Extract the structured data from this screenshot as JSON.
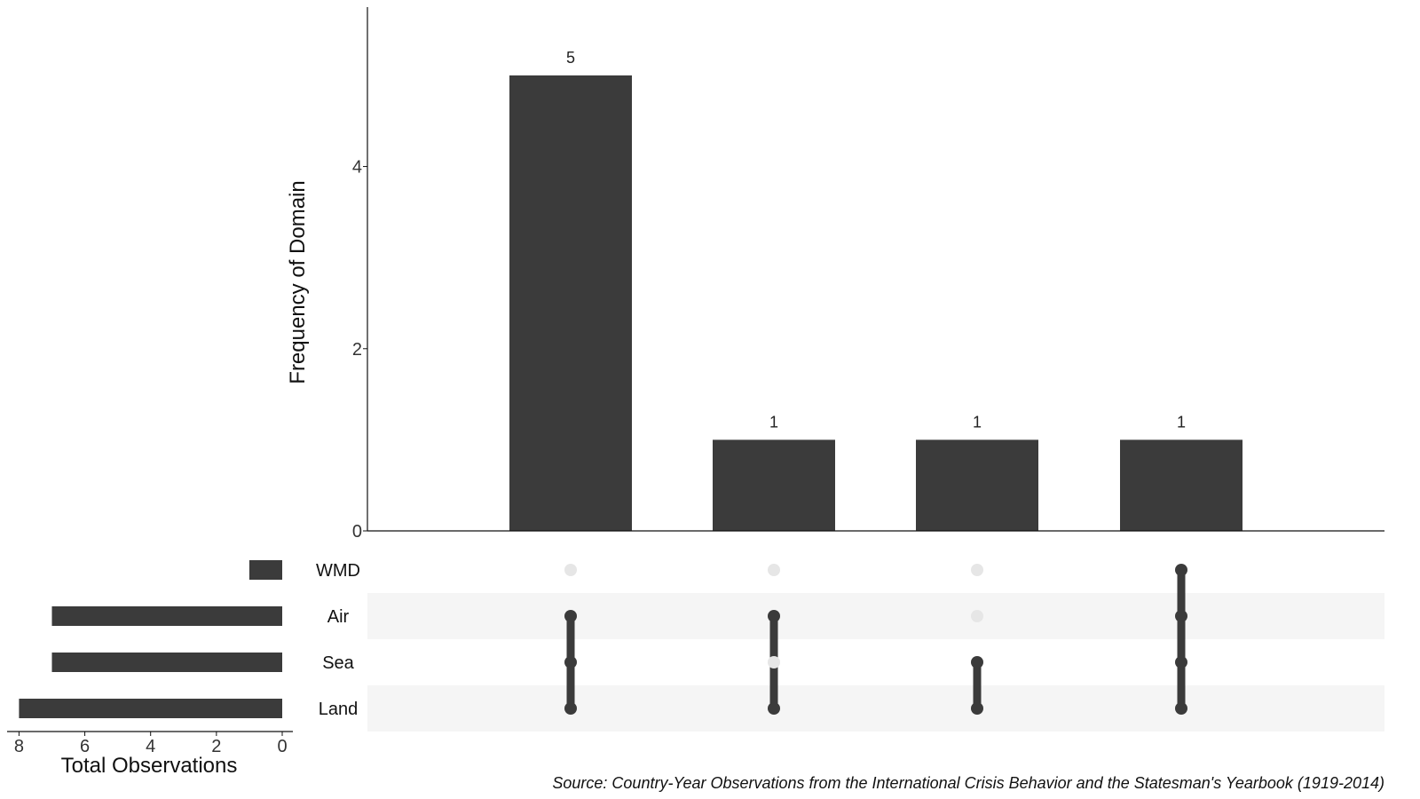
{
  "chart_data": {
    "type": "upset",
    "intersections": {
      "ylabel": "Frequency of Domain",
      "yticks": [
        0,
        2,
        4
      ],
      "ylim": [
        0,
        5.75
      ],
      "values": [
        5,
        1,
        1,
        1
      ],
      "value_labels": [
        "5",
        "1",
        "1",
        "1"
      ],
      "memberships": [
        [
          "Air",
          "Sea",
          "Land"
        ],
        [
          "Air",
          "Land"
        ],
        [
          "Sea",
          "Land"
        ],
        [
          "WMD",
          "Air",
          "Sea",
          "Land"
        ]
      ]
    },
    "sets": {
      "names": [
        "WMD",
        "Air",
        "Sea",
        "Land"
      ],
      "totals": [
        1,
        7,
        7,
        8
      ],
      "xlabel": "Total Observations",
      "xticks": [
        8,
        6,
        4,
        2,
        0
      ],
      "xlim": [
        0,
        8.2
      ]
    },
    "colors": {
      "bar": "#3b3b3b",
      "dot_active": "#3b3b3b",
      "dot_inactive": "#e6e6e6",
      "row_stripe": "#f5f5f5"
    }
  },
  "caption": "Source: Country-Year Observations from the International Crisis Behavior and the Statesman's Yearbook (1919-2014)"
}
